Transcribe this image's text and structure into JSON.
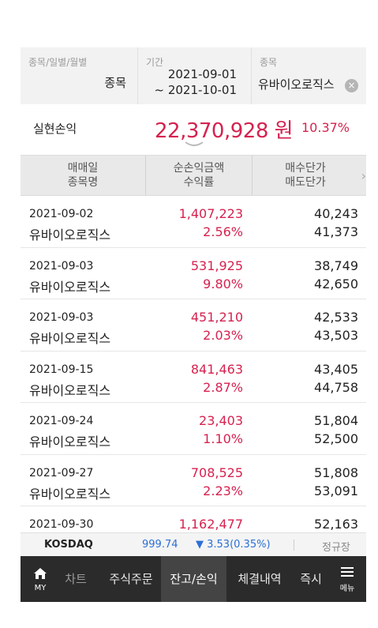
{
  "filter": {
    "type_caption": "종목/일별/월별",
    "type_value": "종목",
    "period_caption": "기간",
    "period_start": "2021-09-01",
    "period_end": "~ 2021-10-01",
    "stock_caption": "종목",
    "stock_value": "유바이오로직스",
    "clear_icon": "×"
  },
  "summary": {
    "label": "실현손익",
    "amount": "22,370,928 원",
    "rate": "10.37%"
  },
  "table": {
    "headers": [
      {
        "line1": "매매일",
        "line2": "종목명"
      },
      {
        "line1": "순손익금액",
        "line2": "수익률"
      },
      {
        "line1": "매수단가",
        "line2": "매도단가"
      }
    ],
    "rows": [
      {
        "date": "2021-09-02",
        "name": "유바이오로직스",
        "pl": "1,407,223",
        "rate": "2.56%",
        "buy": "40,243",
        "sell": "41,373"
      },
      {
        "date": "2021-09-03",
        "name": "유바이오로직스",
        "pl": "531,925",
        "rate": "9.80%",
        "buy": "38,749",
        "sell": "42,650"
      },
      {
        "date": "2021-09-03",
        "name": "유바이오로직스",
        "pl": "451,210",
        "rate": "2.03%",
        "buy": "42,533",
        "sell": "43,503"
      },
      {
        "date": "2021-09-15",
        "name": "유바이오로직스",
        "pl": "841,463",
        "rate": "2.87%",
        "buy": "43,405",
        "sell": "44,758"
      },
      {
        "date": "2021-09-24",
        "name": "유바이오로직스",
        "pl": "23,403",
        "rate": "1.10%",
        "buy": "51,804",
        "sell": "52,500"
      },
      {
        "date": "2021-09-27",
        "name": "유바이오로직스",
        "pl": "708,525",
        "rate": "2.23%",
        "buy": "51,808",
        "sell": "53,091"
      },
      {
        "date": "2021-09-30",
        "name": "",
        "pl": "1,162,477",
        "rate": "",
        "buy": "52,163",
        "sell": ""
      }
    ]
  },
  "ticker": {
    "name": "KOSDAQ",
    "value": "999.74",
    "change": "▼ 3.53(0.35%)",
    "status": "정규장"
  },
  "nav": {
    "my_label": "MY",
    "items": [
      "차트",
      "주식주문",
      "잔고/손익",
      "체결내역",
      "즉시"
    ],
    "menu_label": "메뉴"
  },
  "colors": {
    "up": "#d6224f",
    "down": "#2c6fd6",
    "nav_bg": "#2b2b2b"
  }
}
